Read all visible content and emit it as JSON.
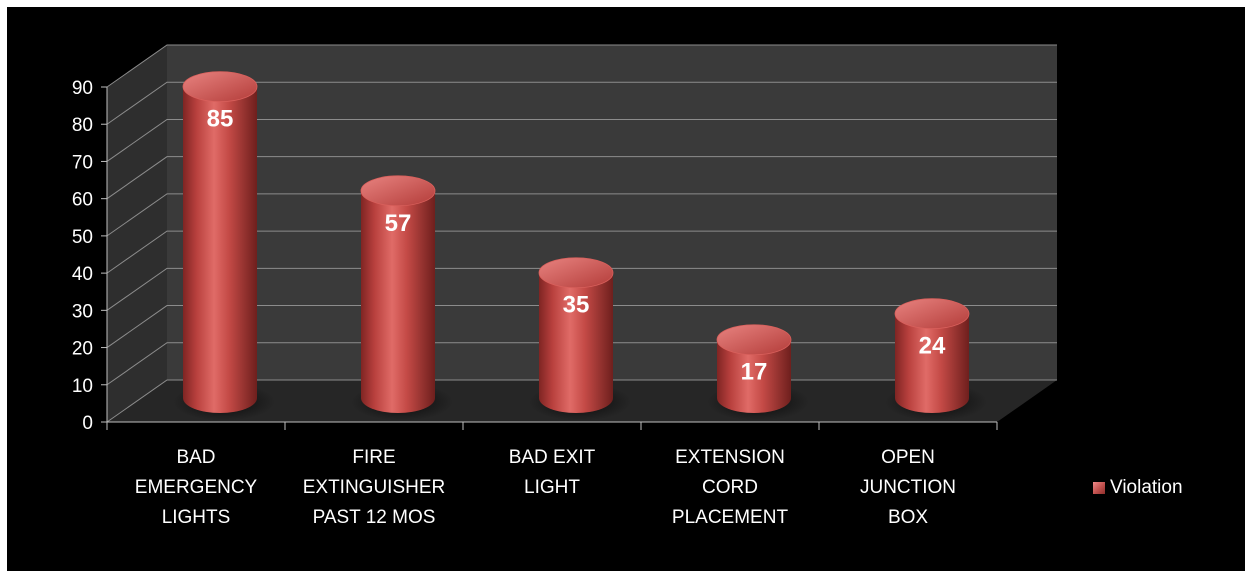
{
  "chart_data": {
    "type": "bar",
    "style": "3d-cylinder",
    "categories": [
      [
        "BAD",
        "EMERGENCY",
        "LIGHTS"
      ],
      [
        "FIRE",
        "EXTINGUISHER",
        "PAST 12 MOS"
      ],
      [
        "BAD EXIT",
        "LIGHT"
      ],
      [
        "EXTENSION",
        "CORD",
        "PLACEMENT"
      ],
      [
        "OPEN",
        "JUNCTION",
        "BOX"
      ]
    ],
    "series": [
      {
        "name": "Violation",
        "values": [
          85,
          57,
          35,
          17,
          24
        ],
        "color": "#c0504d"
      }
    ],
    "ylim": [
      0,
      90
    ],
    "yticks": [
      "0",
      "10",
      "20",
      "30",
      "40",
      "50",
      "60",
      "70",
      "80",
      "90"
    ],
    "data_labels": true,
    "grid": true,
    "legend": "right",
    "colors": {
      "background": "#000000",
      "wall": "#3a3a3a",
      "floor": "#262626",
      "grid": "#8c8c8c",
      "bar": "#c0504d"
    }
  }
}
